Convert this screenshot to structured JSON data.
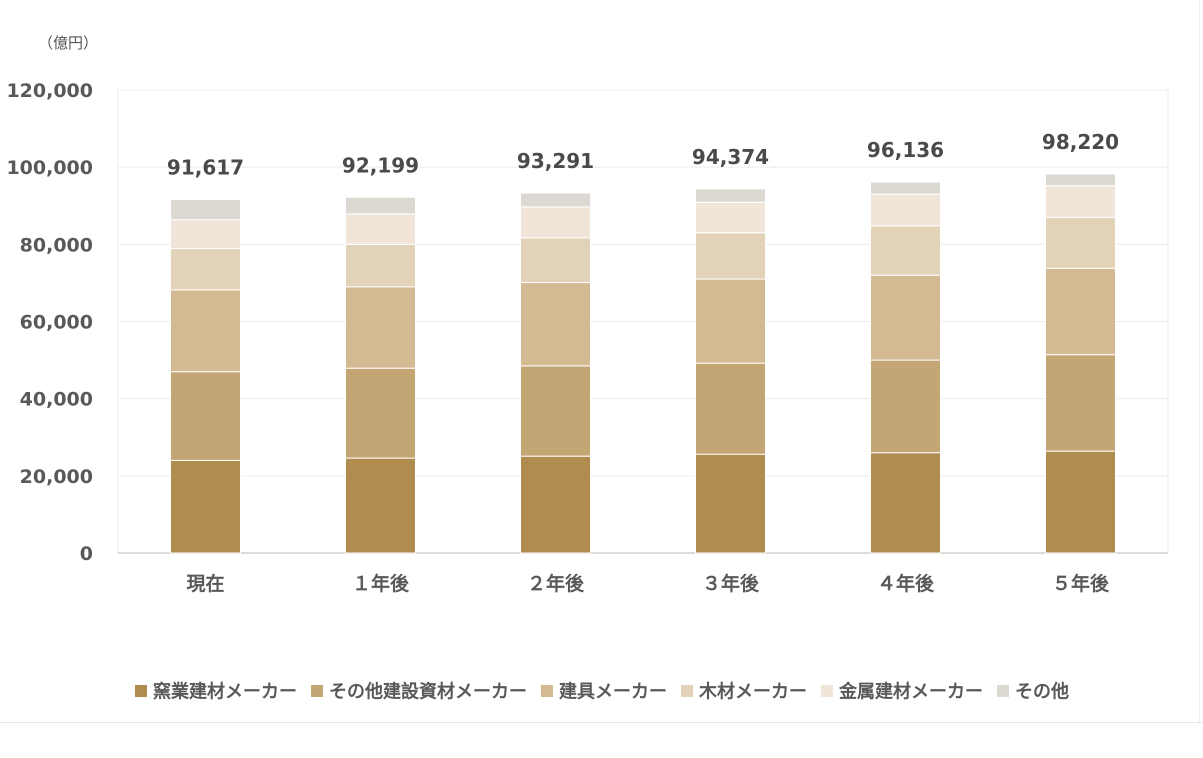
{
  "chart_data": {
    "type": "bar",
    "stacked": true,
    "unit_label": "（億円）",
    "categories": [
      "現在",
      "１年後",
      "２年後",
      "３年後",
      "４年後",
      "５年後"
    ],
    "totals": [
      91617,
      92199,
      93291,
      94374,
      96136,
      98220
    ],
    "total_labels": [
      "91,617",
      "92,199",
      "93,291",
      "94,374",
      "96,136",
      "98,220"
    ],
    "ylim": [
      0,
      120000
    ],
    "y_ticks": [
      0,
      20000,
      40000,
      60000,
      80000,
      100000,
      120000
    ],
    "y_tick_labels": [
      "0",
      "20,000",
      "40,000",
      "60,000",
      "80,000",
      "100,000",
      "120,000"
    ],
    "grid": true,
    "legend_position": "bottom",
    "series": [
      {
        "name": "窯業建材メーカー",
        "color": "#b08d4f",
        "values": [
          24000,
          24600,
          25100,
          25600,
          26000,
          26400
        ]
      },
      {
        "name": "その他建設資材メーカー",
        "color": "#c4a574",
        "values": [
          23000,
          23300,
          23400,
          23600,
          24000,
          25000
        ]
      },
      {
        "name": "建具メーカー",
        "color": "#d3ba93",
        "values": [
          21200,
          21100,
          21600,
          21800,
          22000,
          22400
        ]
      },
      {
        "name": "木材メーカー",
        "color": "#e2d2b8",
        "values": [
          10700,
          11000,
          11600,
          12000,
          12800,
          13200
        ]
      },
      {
        "name": "金属建材メーカー",
        "color": "#f0e5d8",
        "values": [
          7500,
          7900,
          8000,
          7900,
          8200,
          8200
        ]
      },
      {
        "name": "その他",
        "color": "#dcd8d2",
        "values": [
          5217,
          4299,
          3591,
          3474,
          3136,
          3020
        ]
      }
    ]
  }
}
